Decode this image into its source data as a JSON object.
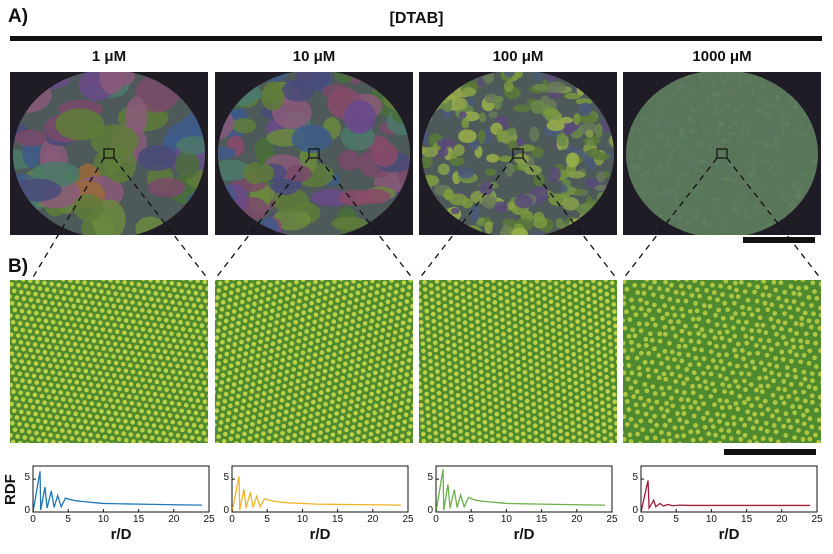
{
  "panel_a_label": "A)",
  "panel_b_label": "B)",
  "figure_title": "[DTAB]",
  "concentrations": [
    "1 μM",
    "10 μM",
    "100 μM",
    "1000 μM"
  ],
  "rdf_ylabel": "RDF",
  "rdf_xlabel": "r/D",
  "chart_data": [
    {
      "type": "line",
      "ylabel": "RDF",
      "xlabel": "r/D",
      "xlim": [
        0,
        25
      ],
      "ylim": [
        0,
        7
      ],
      "x_ticks": [
        "0",
        "5",
        "10",
        "15",
        "20",
        "25"
      ],
      "y_ticks": [
        "0",
        "5"
      ],
      "color": "#1f77b4",
      "series": [
        {
          "x": [
            0.0,
            1.0,
            1.1,
            1.7,
            2.0,
            2.6,
            3.0,
            3.5,
            4.0,
            4.6,
            5.3,
            6.1,
            7.0,
            8.0,
            9.0,
            10.0,
            12.0,
            15.0,
            20.0,
            24.0
          ],
          "values": [
            0.0,
            6.2,
            0.3,
            3.8,
            0.6,
            3.2,
            0.7,
            2.5,
            0.8,
            2.1,
            1.9,
            1.7,
            1.6,
            1.5,
            1.4,
            1.3,
            1.25,
            1.2,
            1.1,
            1.05
          ]
        }
      ]
    },
    {
      "type": "line",
      "ylabel": "RDF",
      "xlabel": "r/D",
      "xlim": [
        0,
        25
      ],
      "ylim": [
        0,
        7
      ],
      "x_ticks": [
        "0",
        "5",
        "10",
        "15",
        "20",
        "25"
      ],
      "y_ticks": [
        "0",
        "5"
      ],
      "color": "#f0b429",
      "series": [
        {
          "x": [
            0.0,
            1.0,
            1.1,
            1.7,
            2.0,
            2.6,
            3.0,
            3.5,
            4.0,
            4.6,
            5.3,
            6.1,
            7.0,
            8.0,
            9.0,
            10.0,
            12.0,
            15.0,
            20.0,
            24.0
          ],
          "values": [
            0.0,
            5.4,
            0.3,
            3.5,
            0.6,
            3.0,
            0.7,
            2.4,
            0.8,
            2.0,
            1.8,
            1.6,
            1.5,
            1.4,
            1.35,
            1.3,
            1.2,
            1.15,
            1.1,
            1.05
          ]
        }
      ]
    },
    {
      "type": "line",
      "ylabel": "RDF",
      "xlabel": "r/D",
      "xlim": [
        0,
        25
      ],
      "ylim": [
        0,
        7
      ],
      "x_ticks": [
        "0",
        "5",
        "10",
        "15",
        "20",
        "25"
      ],
      "y_ticks": [
        "0",
        "5"
      ],
      "color": "#6ab04c",
      "series": [
        {
          "x": [
            0.0,
            1.0,
            1.1,
            1.7,
            2.0,
            2.6,
            3.0,
            3.5,
            4.0,
            4.6,
            5.3,
            6.1,
            7.0,
            8.0,
            9.0,
            10.0,
            12.0,
            15.0,
            20.0,
            24.0
          ],
          "values": [
            0.0,
            6.5,
            0.3,
            4.2,
            0.6,
            3.4,
            0.7,
            2.6,
            0.8,
            2.2,
            1.9,
            1.7,
            1.6,
            1.5,
            1.4,
            1.3,
            1.25,
            1.2,
            1.1,
            1.05
          ]
        }
      ]
    },
    {
      "type": "line",
      "ylabel": "RDF",
      "xlabel": "r/D",
      "xlim": [
        0,
        25
      ],
      "ylim": [
        0,
        7
      ],
      "x_ticks": [
        "0",
        "5",
        "10",
        "15",
        "20",
        "25"
      ],
      "y_ticks": [
        "0",
        "5"
      ],
      "color": "#a01d3a",
      "series": [
        {
          "x": [
            0.0,
            1.0,
            1.15,
            1.8,
            2.1,
            2.7,
            3.2,
            3.8,
            4.5,
            5.5,
            7.0,
            10.0,
            15.0,
            20.0,
            24.0
          ],
          "values": [
            0.0,
            4.8,
            0.6,
            1.8,
            0.8,
            1.3,
            0.9,
            1.15,
            0.95,
            1.05,
            1.0,
            1.0,
            1.0,
            1.0,
            1.0
          ]
        }
      ]
    }
  ],
  "micro_palettes": [
    [
      "#4a6e3a",
      "#5f7d3a",
      "#7a4a6a",
      "#8a5a7a",
      "#3e5a8a",
      "#4a4a7a",
      "#6b8a3e",
      "#9a6a3a",
      "#4a7a6a",
      "#6a4a8a"
    ],
    [
      "#4a6e3a",
      "#5f7d3a",
      "#7a4a6a",
      "#8a5a7a",
      "#3e5a8a",
      "#4a4a7a",
      "#6b8a3e",
      "#8a4a6a",
      "#4a7a6a",
      "#6a4a8a"
    ],
    [
      "#5a7a3a",
      "#7a9a3e",
      "#9ab04a",
      "#6a8a4a",
      "#4a5a7a",
      "#5a4a7a",
      "#8aa04a",
      "#6a7a5a"
    ],
    [
      "#5a7a5a",
      "#5e7e5e",
      "#62825e",
      "#5a7a62",
      "#5e765e",
      "#607a60"
    ]
  ],
  "micro_grain_counts": [
    60,
    90,
    260,
    600
  ],
  "zoom_lattice_colors": [
    {
      "bg": "#4f8a2e",
      "dot": "#c8d84a"
    },
    {
      "bg": "#4f8a2e",
      "dot": "#c8d84a"
    },
    {
      "bg": "#4f8a2e",
      "dot": "#c8d84a"
    },
    {
      "bg": "#4f8a2e",
      "dot": "#b8cc44"
    }
  ]
}
